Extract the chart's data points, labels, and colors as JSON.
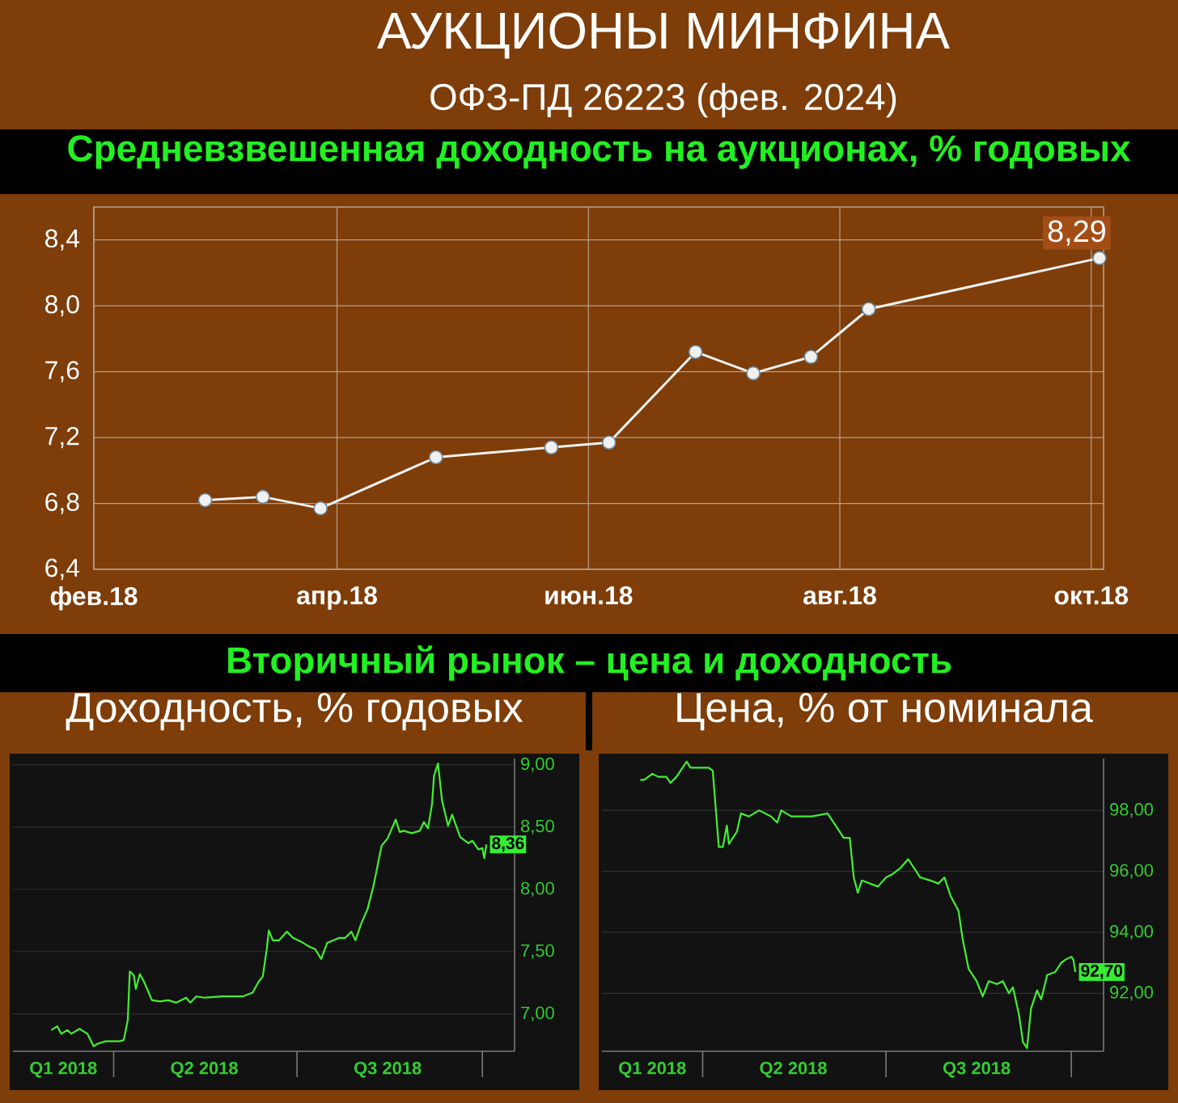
{
  "chart_data": [
    {
      "type": "other",
      "title": "АУКЦИОНЫ МИНФИНА",
      "subtitle": "ОФЗ-ПД 26223 (фев. 2024)"
    },
    {
      "type": "line",
      "title": "Средневзвешенная доходность на аукционах, % годовых",
      "x": [
        "2018-02-28",
        "2018-03-14",
        "2018-03-28",
        "2018-04-25",
        "2018-05-23",
        "2018-06-06",
        "2018-06-27",
        "2018-07-11",
        "2018-07-25",
        "2018-08-08",
        "2018-10-03"
      ],
      "values": [
        6.82,
        6.84,
        6.77,
        7.08,
        7.14,
        7.17,
        7.72,
        7.59,
        7.69,
        7.98,
        8.29
      ],
      "color": "#f0f0f0",
      "marker": "circle",
      "value_labels": [
        null,
        null,
        null,
        null,
        null,
        null,
        null,
        null,
        null,
        null,
        "8,29"
      ],
      "xlim": [
        "2018-02-01",
        "2018-10-04"
      ],
      "xticks": [
        {
          "value": "2018-02-01",
          "label": "фев.18"
        },
        {
          "value": "2018-04-01",
          "label": "апр.18"
        },
        {
          "value": "2018-06-01",
          "label": "июн.18"
        },
        {
          "value": "2018-08-01",
          "label": "авг.18"
        },
        {
          "value": "2018-10-01",
          "label": "окт.18"
        }
      ],
      "ylim": [
        6.4,
        8.6
      ],
      "yticks": [
        {
          "value": 6.4,
          "label": "6,4"
        },
        {
          "value": 6.8,
          "label": "6,8"
        },
        {
          "value": 7.2,
          "label": "7,2"
        },
        {
          "value": 7.6,
          "label": "7,6"
        },
        {
          "value": 8.0,
          "label": "8,0"
        },
        {
          "value": 8.4,
          "label": "8,4"
        }
      ],
      "grid": true
    },
    {
      "type": "other",
      "title": "Вторичный рынок – цена и доходность"
    },
    {
      "type": "line",
      "title": "Доходность, % годовых",
      "x": [
        "2018-03-01",
        "2018-03-04",
        "2018-03-06",
        "2018-03-09",
        "2018-03-11",
        "2018-03-15",
        "2018-03-19",
        "2018-03-22",
        "2018-03-24",
        "2018-03-28",
        "2018-04-04",
        "2018-04-06",
        "2018-04-08",
        "2018-04-09",
        "2018-04-11",
        "2018-04-12",
        "2018-04-14",
        "2018-04-16",
        "2018-04-20",
        "2018-04-24",
        "2018-04-28",
        "2018-05-02",
        "2018-05-07",
        "2018-05-09",
        "2018-05-12",
        "2018-05-16",
        "2018-05-25",
        "2018-06-04",
        "2018-06-09",
        "2018-06-12",
        "2018-06-14",
        "2018-06-16",
        "2018-06-17",
        "2018-06-19",
        "2018-06-22",
        "2018-06-26",
        "2018-06-29",
        "2018-07-03",
        "2018-07-07",
        "2018-07-10",
        "2018-07-13",
        "2018-07-16",
        "2018-07-22",
        "2018-07-25",
        "2018-07-28",
        "2018-07-30",
        "2018-08-02",
        "2018-08-05",
        "2018-08-08",
        "2018-08-12",
        "2018-08-15",
        "2018-08-19",
        "2018-08-21",
        "2018-08-23",
        "2018-08-27",
        "2018-08-31",
        "2018-09-02",
        "2018-09-04",
        "2018-09-06",
        "2018-09-07",
        "2018-09-09",
        "2018-09-11",
        "2018-09-14",
        "2018-09-16",
        "2018-09-20",
        "2018-09-24",
        "2018-09-26",
        "2018-09-29",
        "2018-10-01",
        "2018-10-02",
        "2018-10-03"
      ],
      "values": [
        6.87,
        6.9,
        6.84,
        6.87,
        6.84,
        6.88,
        6.84,
        6.74,
        6.76,
        6.78,
        6.78,
        6.79,
        6.95,
        7.34,
        7.31,
        7.2,
        7.32,
        7.26,
        7.11,
        7.1,
        7.11,
        7.09,
        7.13,
        7.09,
        7.14,
        7.13,
        7.14,
        7.14,
        7.17,
        7.26,
        7.3,
        7.52,
        7.67,
        7.59,
        7.59,
        7.66,
        7.61,
        7.58,
        7.54,
        7.52,
        7.44,
        7.57,
        7.61,
        7.61,
        7.66,
        7.59,
        7.73,
        7.84,
        8.03,
        8.35,
        8.41,
        8.56,
        8.46,
        8.47,
        8.45,
        8.47,
        8.54,
        8.49,
        8.68,
        8.91,
        9.01,
        8.71,
        8.51,
        8.6,
        8.42,
        8.37,
        8.39,
        8.32,
        8.33,
        8.25,
        8.36
      ],
      "color": "#44ee33",
      "value_labels": [
        null,
        null,
        null,
        null,
        null,
        null,
        null,
        null,
        null,
        null,
        null,
        null,
        null,
        null,
        null,
        null,
        null,
        null,
        null,
        null,
        null,
        null,
        null,
        null,
        null,
        null,
        null,
        null,
        null,
        null,
        null,
        null,
        null,
        null,
        null,
        null,
        null,
        null,
        null,
        null,
        null,
        null,
        null,
        null,
        null,
        null,
        null,
        null,
        null,
        null,
        null,
        null,
        null,
        null,
        null,
        null,
        null,
        null,
        null,
        null,
        null,
        null,
        null,
        null,
        null,
        null,
        null,
        null,
        null,
        null,
        "8,36"
      ],
      "xlim": [
        "2018-02-10",
        "2018-10-17"
      ],
      "xticks": [
        {
          "value": "2018-03-07",
          "label": "Q1 2018"
        },
        {
          "value": "2018-04-01",
          "label": null
        },
        {
          "value": "2018-05-16",
          "label": "Q2 2018"
        },
        {
          "value": "2018-07-01",
          "label": null
        },
        {
          "value": "2018-08-15",
          "label": "Q3 2018"
        },
        {
          "value": "2018-10-01",
          "label": null
        }
      ],
      "ylim": [
        6.7,
        9.05
      ],
      "yticks": [
        {
          "value": 7,
          "label": "7,00"
        },
        {
          "value": 7.5,
          "label": "7,50"
        },
        {
          "value": 8,
          "label": "8,00"
        },
        {
          "value": 8.5,
          "label": "8,50"
        },
        {
          "value": 9,
          "label": "9,00"
        }
      ],
      "grid": "y"
    },
    {
      "type": "line",
      "title": "Цена, % от номинала",
      "x": [
        "2018-03-01",
        "2018-03-03",
        "2018-03-07",
        "2018-03-10",
        "2018-03-14",
        "2018-03-16",
        "2018-03-19",
        "2018-03-22",
        "2018-03-24",
        "2018-03-26",
        "2018-03-31",
        "2018-04-04",
        "2018-04-06",
        "2018-04-09",
        "2018-04-11",
        "2018-04-13",
        "2018-04-14",
        "2018-04-18",
        "2018-04-20",
        "2018-04-24",
        "2018-04-29",
        "2018-05-05",
        "2018-05-08",
        "2018-05-10",
        "2018-05-15",
        "2018-05-25",
        "2018-06-02",
        "2018-06-06",
        "2018-06-10",
        "2018-06-13",
        "2018-06-15",
        "2018-06-17",
        "2018-06-19",
        "2018-06-23",
        "2018-06-27",
        "2018-07-01",
        "2018-07-04",
        "2018-07-08",
        "2018-07-12",
        "2018-07-14",
        "2018-07-18",
        "2018-07-23",
        "2018-07-27",
        "2018-07-30",
        "2018-08-02",
        "2018-08-06",
        "2018-08-08",
        "2018-08-11",
        "2018-08-15",
        "2018-08-18",
        "2018-08-21",
        "2018-08-25",
        "2018-08-28",
        "2018-08-31",
        "2018-09-02",
        "2018-09-05",
        "2018-09-07",
        "2018-09-09",
        "2018-09-11",
        "2018-09-14",
        "2018-09-16",
        "2018-09-19",
        "2018-09-23",
        "2018-09-26",
        "2018-09-28",
        "2018-10-01",
        "2018-10-02",
        "2018-10-03"
      ],
      "values": [
        99.0,
        99.0,
        99.2,
        99.1,
        99.1,
        98.9,
        99.1,
        99.4,
        99.6,
        99.4,
        99.4,
        99.4,
        99.3,
        96.8,
        96.8,
        97.5,
        96.9,
        97.3,
        97.9,
        97.8,
        98.0,
        97.8,
        97.6,
        98.0,
        97.8,
        97.8,
        97.9,
        97.5,
        97.1,
        97.1,
        95.8,
        95.3,
        95.7,
        95.6,
        95.5,
        95.8,
        95.9,
        96.1,
        96.4,
        96.2,
        95.8,
        95.7,
        95.6,
        95.8,
        95.2,
        94.7,
        93.8,
        92.8,
        92.4,
        91.9,
        92.4,
        92.3,
        92.4,
        92.0,
        92.2,
        91.3,
        90.4,
        90.2,
        91.5,
        92.1,
        91.8,
        92.6,
        92.7,
        93.0,
        93.1,
        93.2,
        93.1,
        92.7
      ],
      "color": "#44ee33",
      "value_labels": [
        null,
        null,
        null,
        null,
        null,
        null,
        null,
        null,
        null,
        null,
        null,
        null,
        null,
        null,
        null,
        null,
        null,
        null,
        null,
        null,
        null,
        null,
        null,
        null,
        null,
        null,
        null,
        null,
        null,
        null,
        null,
        null,
        null,
        null,
        null,
        null,
        null,
        null,
        null,
        null,
        null,
        null,
        null,
        null,
        null,
        null,
        null,
        null,
        null,
        null,
        null,
        null,
        null,
        null,
        null,
        null,
        null,
        null,
        null,
        null,
        null,
        null,
        null,
        null,
        null,
        null,
        null,
        "92,70"
      ],
      "xlim": [
        "2018-02-10",
        "2018-10-17"
      ],
      "xticks": [
        {
          "value": "2018-03-07",
          "label": "Q1 2018"
        },
        {
          "value": "2018-04-01",
          "label": null
        },
        {
          "value": "2018-05-16",
          "label": "Q2 2018"
        },
        {
          "value": "2018-07-01",
          "label": null
        },
        {
          "value": "2018-08-15",
          "label": "Q3 2018"
        },
        {
          "value": "2018-10-01",
          "label": null
        }
      ],
      "ylim": [
        90.1,
        99.7
      ],
      "yticks": [
        {
          "value": 92,
          "label": "92,00"
        },
        {
          "value": 94,
          "label": "94,00"
        },
        {
          "value": 96,
          "label": "96,00"
        },
        {
          "value": 98,
          "label": "98,00"
        }
      ],
      "grid": "y"
    }
  ]
}
